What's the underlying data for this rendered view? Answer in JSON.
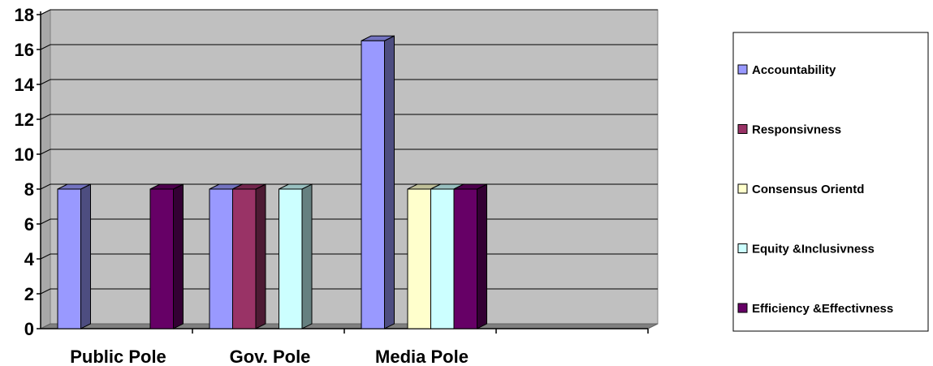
{
  "chart_data": {
    "type": "bar",
    "title": "",
    "xlabel": "",
    "ylabel": "",
    "categories": [
      "Public Pole",
      "Gov. Pole",
      "Media Pole",
      ""
    ],
    "ylim": [
      0,
      18
    ],
    "yticks": [
      "0",
      "2",
      "4",
      "6",
      "8",
      "10",
      "12",
      "14",
      "16",
      "18"
    ],
    "grid": true,
    "legend_position": "right",
    "series": [
      {
        "name": "Accountability",
        "color": "#9999FF",
        "values": [
          8,
          8,
          16.5,
          null
        ]
      },
      {
        "name": "Responsivness",
        "color": "#993366",
        "values": [
          null,
          8,
          null,
          null
        ]
      },
      {
        "name": "Consensus Orientd",
        "color": "#FFFFCC",
        "values": [
          null,
          null,
          8,
          null
        ]
      },
      {
        "name": "Equity &Inclusivness",
        "color": "#CCFFFF",
        "values": [
          null,
          8,
          8,
          null
        ]
      },
      {
        "name": "Efficiency &Effectivness",
        "color": "#660066",
        "values": [
          8,
          null,
          8,
          null
        ]
      }
    ],
    "plot_background": "#C0C0C0",
    "floor_color": "#808080",
    "gridline_color": "#000000"
  }
}
